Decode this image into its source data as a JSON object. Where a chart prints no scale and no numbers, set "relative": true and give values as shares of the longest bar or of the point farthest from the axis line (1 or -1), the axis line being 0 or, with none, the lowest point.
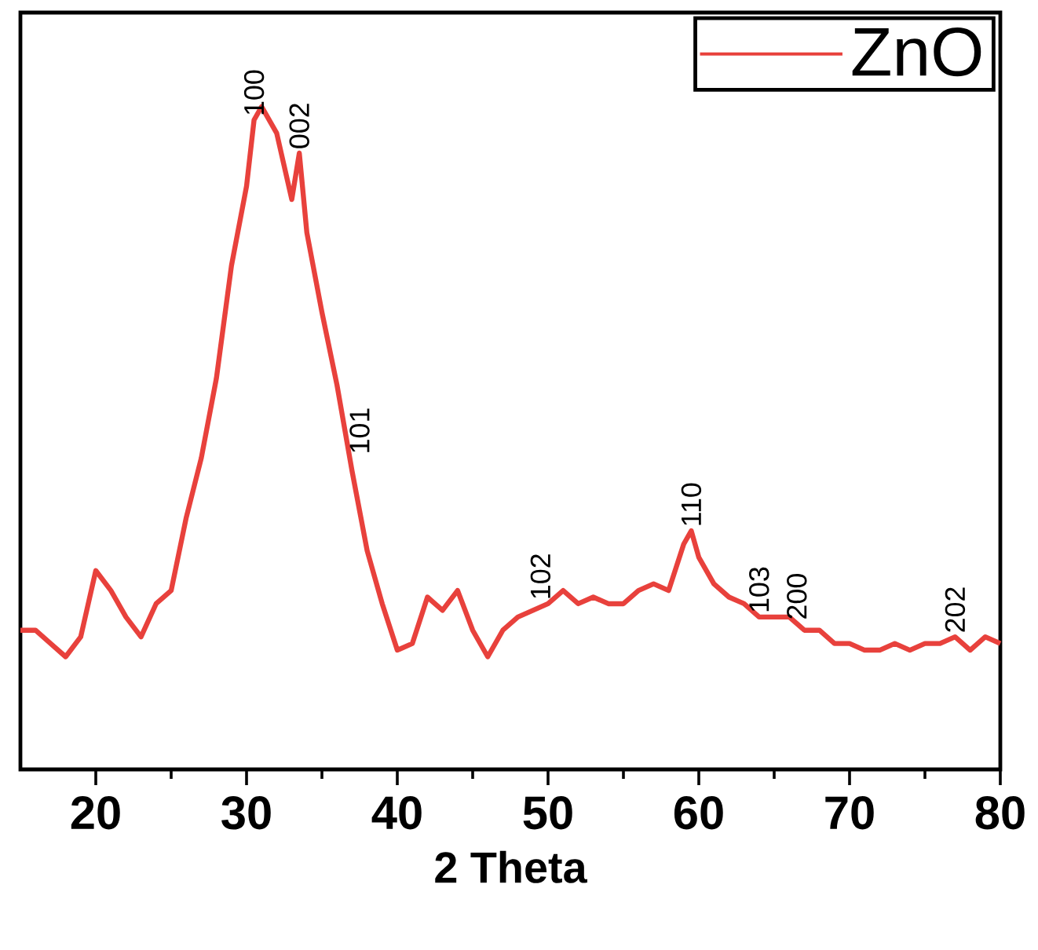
{
  "chart_data": {
    "type": "line",
    "xlabel": "2 Theta",
    "relative": true,
    "xlim": [
      15,
      80
    ],
    "xticks": [
      20,
      30,
      40,
      50,
      60,
      70,
      80
    ],
    "legend": "top right",
    "grid": false,
    "marker": "none",
    "line_style": "solid",
    "x": [
      15,
      16,
      17,
      18,
      19,
      20,
      21,
      22,
      23,
      24,
      25,
      26,
      27,
      28,
      29,
      30,
      30.5,
      31,
      32,
      33,
      33.5,
      34,
      35,
      36,
      37,
      38,
      39,
      40,
      41,
      42,
      43,
      44,
      45,
      46,
      47,
      48,
      49,
      50,
      51,
      52,
      53,
      54,
      55,
      56,
      57,
      58,
      59,
      59.5,
      60,
      61,
      62,
      63,
      64,
      65,
      66,
      67,
      68,
      69,
      70,
      71,
      72,
      73,
      74,
      75,
      76,
      77,
      78,
      79,
      80
    ],
    "series": [
      {
        "name": "ZnO",
        "color": "#e8413c",
        "values": [
          0.21,
          0.21,
          0.19,
          0.17,
          0.2,
          0.3,
          0.27,
          0.23,
          0.2,
          0.25,
          0.27,
          0.38,
          0.47,
          0.59,
          0.76,
          0.88,
          0.98,
          1,
          0.96,
          0.86,
          0.93,
          0.81,
          0.69,
          0.58,
          0.45,
          0.33,
          0.25,
          0.18,
          0.19,
          0.26,
          0.24,
          0.27,
          0.21,
          0.17,
          0.21,
          0.23,
          0.24,
          0.25,
          0.27,
          0.25,
          0.26,
          0.25,
          0.25,
          0.27,
          0.28,
          0.27,
          0.34,
          0.36,
          0.32,
          0.28,
          0.26,
          0.25,
          0.23,
          0.23,
          0.23,
          0.21,
          0.21,
          0.19,
          0.19,
          0.18,
          0.18,
          0.19,
          0.18,
          0.19,
          0.19,
          0.2,
          0.18,
          0.2,
          0.19
        ]
      }
    ],
    "annotations": [
      {
        "text": "100",
        "x": 30.5,
        "y": 0.98
      },
      {
        "text": "002",
        "x": 33.5,
        "y": 0.93
      },
      {
        "text": "101",
        "x": 37.5,
        "y": 0.47
      },
      {
        "text": "102",
        "x": 49.5,
        "y": 0.25
      },
      {
        "text": "110",
        "x": 59.5,
        "y": 0.36
      },
      {
        "text": "103",
        "x": 64,
        "y": 0.23
      },
      {
        "text": "200",
        "x": 66.5,
        "y": 0.22
      },
      {
        "text": "202",
        "x": 77,
        "y": 0.2
      }
    ]
  }
}
